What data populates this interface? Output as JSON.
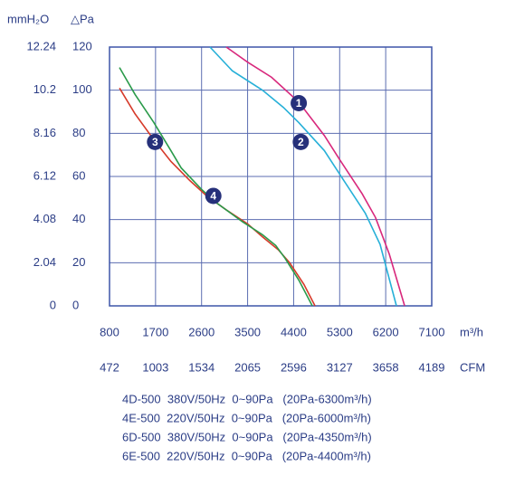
{
  "chart_data": {
    "type": "line",
    "y_label": "mmH₂O",
    "y2_label": "△Pa",
    "x_label": "m³/h",
    "x2_label": "CFM",
    "xlim": [
      800,
      7100
    ],
    "xticks": [
      800,
      1700,
      2600,
      3500,
      4400,
      5300,
      6200,
      7100
    ],
    "x2lim": [
      472,
      4189
    ],
    "x2ticks": [
      472,
      1003,
      1534,
      2065,
      2596,
      3127,
      3658,
      4189
    ],
    "ylim": [
      0,
      120
    ],
    "yticks": [
      0,
      20,
      40,
      60,
      80,
      100,
      120
    ],
    "y2lim": [
      0,
      12.24
    ],
    "y2ticks": [
      0,
      2.04,
      4.08,
      6.12,
      8.16,
      10.2,
      12.24
    ],
    "grid": true,
    "series": [
      {
        "name": "1",
        "color": "#d8287c",
        "x": [
          3083,
          3500,
          3968,
          4500,
          5000,
          5295,
          5739,
          6000,
          6270,
          6570
        ],
        "values": [
          120,
          113,
          106,
          94.5,
          79,
          68,
          52,
          41,
          24,
          0
        ]
      },
      {
        "name": "2",
        "color": "#27b0d8",
        "x": [
          2765,
          3200,
          3791,
          4200,
          4500,
          5000,
          5385,
          5800,
          6090,
          6410
        ],
        "values": [
          120,
          109,
          100,
          92,
          85,
          72,
          58,
          43,
          28.5,
          0
        ]
      },
      {
        "name": "3",
        "color": "#d63a2a",
        "x": [
          995,
          1300,
          1667,
          2000,
          2375,
          2700,
          3083,
          3500,
          3791,
          4100,
          4322,
          4600,
          4818
        ],
        "values": [
          101,
          89,
          77,
          67,
          58,
          51,
          44.5,
          38,
          32,
          26,
          20,
          10,
          0
        ]
      },
      {
        "name": "4",
        "color": "#2a9a4a",
        "x": [
          995,
          1300,
          1667,
          2000,
          2200,
          2600,
          2906,
          3400,
          3791,
          4050,
          4234,
          4500,
          4765
        ],
        "values": [
          110.5,
          98,
          85,
          72,
          64,
          54,
          47.5,
          39,
          33,
          28,
          22,
          12,
          0
        ]
      }
    ],
    "annotations": [
      {
        "text": "1",
        "x": 4500,
        "y": 94
      },
      {
        "text": "2",
        "x": 4540,
        "y": 76
      },
      {
        "text": "3",
        "x": 1690,
        "y": 76
      },
      {
        "text": "4",
        "x": 2830,
        "y": 51
      }
    ],
    "notes": [
      "4D-500  380V/50Hz  0~90Pa   (20Pa-6300m³/h)",
      "4E-500  220V/50Hz  0~90Pa   (20Pa-6000m³/h)",
      "6D-500  380V/50Hz  0~90Pa   (20Pa-4350m³/h)",
      "6E-500  220V/50Hz  0~90Pa   (20Pa-4400m³/h)"
    ]
  }
}
